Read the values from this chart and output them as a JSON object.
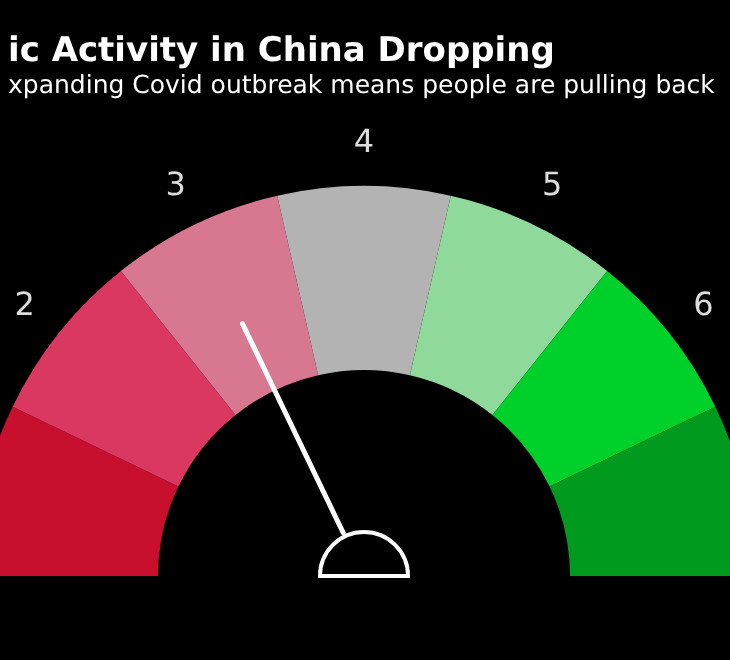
{
  "chart_data": {
    "type": "donut",
    "title": "ic Activity in China Dropping",
    "subtitle": "xpanding Covid outbreak means people are pulling back",
    "categories": [
      null,
      "2",
      "3",
      "4",
      "5",
      "6",
      null
    ],
    "values": [
      14.29,
      14.29,
      14.29,
      14.29,
      14.29,
      14.29,
      14.29
    ],
    "colors": [
      "#c8102e",
      "#da3860",
      "#d87890",
      "#b3b3b3",
      "#8fd99a",
      "#00d02a",
      "#009a1e"
    ],
    "needle": "3",
    "legend": false
  }
}
